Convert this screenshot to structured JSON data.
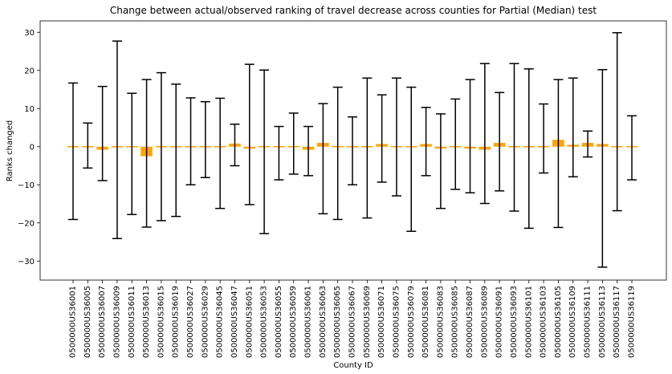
{
  "chart_data": {
    "type": "bar",
    "title": "Change between actual/observed ranking of travel decrease across counties for Partial (Median) test",
    "xlabel": "County ID",
    "ylabel": "Ranks changed",
    "ylim": [
      -35,
      33
    ],
    "yticks": [
      -30,
      -20,
      -10,
      0,
      10,
      20,
      30
    ],
    "grid": false,
    "bar_color": "#ffa500",
    "error_color": "#000000",
    "categories": [
      "0500000US36001",
      "0500000US36005",
      "0500000US36007",
      "0500000US36009",
      "0500000US36011",
      "0500000US36013",
      "0500000US36015",
      "0500000US36019",
      "0500000US36027",
      "0500000US36029",
      "0500000US36045",
      "0500000US36047",
      "0500000US36051",
      "0500000US36053",
      "0500000US36055",
      "0500000US36059",
      "0500000US36061",
      "0500000US36063",
      "0500000US36065",
      "0500000US36067",
      "0500000US36069",
      "0500000US36071",
      "0500000US36075",
      "0500000US36079",
      "0500000US36081",
      "0500000US36083",
      "0500000US36085",
      "0500000US36087",
      "0500000US36089",
      "0500000US36091",
      "0500000US36093",
      "0500000US36101",
      "0500000US36103",
      "0500000US36105",
      "0500000US36109",
      "0500000US36111",
      "0500000US36113",
      "0500000US36117",
      "0500000US36119"
    ],
    "values": [
      0.2,
      0.1,
      -0.8,
      -0.3,
      0.0,
      -2.5,
      -0.2,
      0.3,
      -0.3,
      0.3,
      0.3,
      0.8,
      -0.5,
      0.0,
      0.1,
      0.0,
      -0.8,
      1.0,
      0.0,
      0.0,
      -0.3,
      0.7,
      -0.3,
      0.3,
      0.7,
      -0.5,
      0.2,
      -0.5,
      -0.8,
      1.0,
      -0.2,
      -0.2,
      0.1,
      1.8,
      0.5,
      1.0,
      0.7,
      -0.3,
      0.2
    ],
    "error_upper": [
      16.7,
      6.2,
      15.8,
      27.7,
      14.0,
      17.6,
      19.4,
      16.4,
      12.8,
      11.8,
      12.7,
      5.9,
      21.6,
      20.1,
      5.3,
      8.8,
      5.3,
      11.3,
      15.6,
      7.8,
      18.0,
      13.6,
      18.0,
      15.6,
      10.3,
      8.6,
      12.5,
      17.6,
      21.8,
      14.2,
      21.8,
      20.4,
      11.2,
      17.6,
      18.0,
      4.1,
      20.2,
      29.9,
      8.1
    ],
    "error_lower": [
      -19.1,
      -5.6,
      -8.9,
      -24.1,
      -17.8,
      -21.1,
      -19.4,
      -18.3,
      -10.0,
      -8.1,
      -16.2,
      -5.0,
      -15.2,
      -22.8,
      -8.7,
      -7.2,
      -7.6,
      -17.6,
      -19.1,
      -10.0,
      -18.7,
      -9.3,
      -12.9,
      -22.2,
      -7.6,
      -16.2,
      -11.2,
      -12.1,
      -14.9,
      -11.6,
      -16.9,
      -21.4,
      -6.9,
      -21.2,
      -7.9,
      -2.7,
      -31.6,
      -16.8,
      -8.7
    ]
  }
}
